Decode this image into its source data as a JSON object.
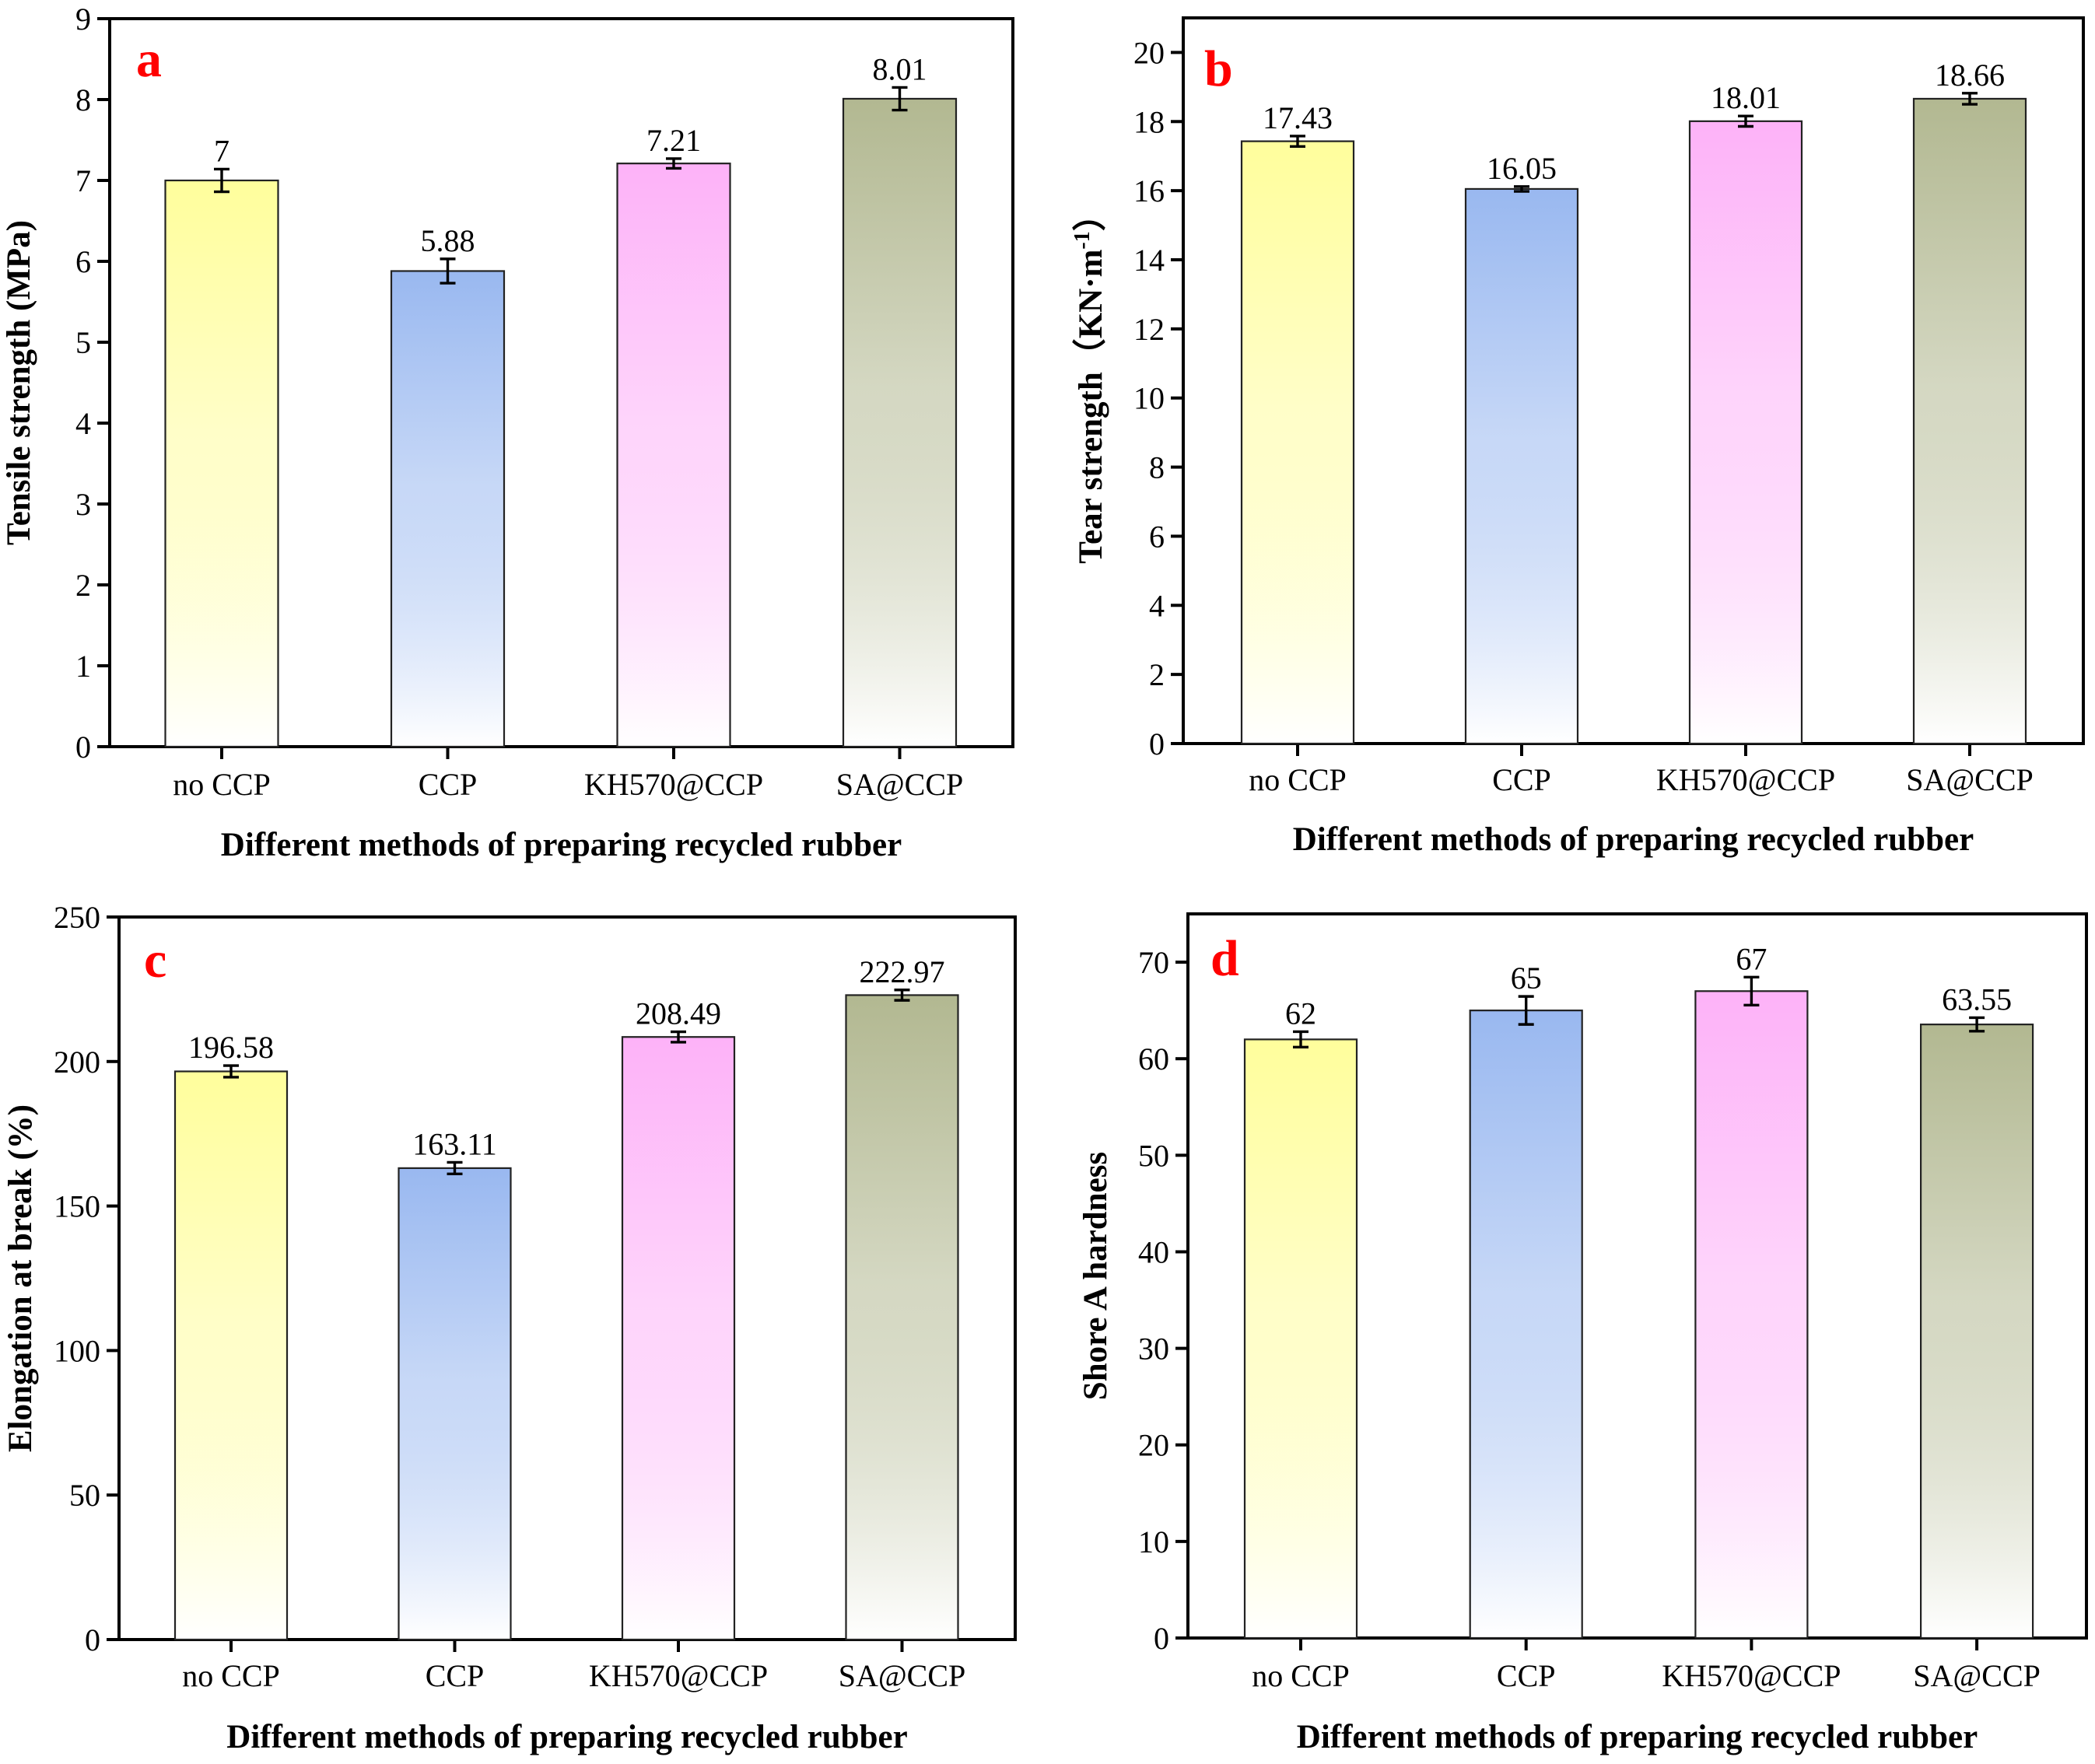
{
  "colors": {
    "no CCP": "#fffe9c",
    "CCP": "#99b8f0",
    "KH570@CCP": "#fdb2f8",
    "SA@CCP": "#b2b891",
    "panel_letter": "#ff0000"
  },
  "chart_data": [
    {
      "type": "bar",
      "panel": "a",
      "title": "",
      "categories": [
        "no CCP",
        "CCP",
        "KH570@CCP",
        "SA@CCP"
      ],
      "values": [
        7,
        5.88,
        7.21,
        8.01
      ],
      "value_labels": [
        "7",
        "5.88",
        "7.21",
        "8.01"
      ],
      "errors": [
        0.14,
        0.15,
        0.06,
        0.14
      ],
      "xlabel": "Different methods of preparing recycled rubber",
      "ylabel": "Tensile strength (MPa)",
      "ylim": [
        0,
        9
      ],
      "yticks": [
        0,
        1,
        2,
        3,
        4,
        5,
        6,
        7,
        8,
        9
      ],
      "grid": false,
      "legend": "none"
    },
    {
      "type": "bar",
      "panel": "b",
      "title": "",
      "categories": [
        "no CCP",
        "CCP",
        "KH570@CCP",
        "SA@CCP"
      ],
      "values": [
        17.43,
        16.05,
        18.01,
        18.66
      ],
      "value_labels": [
        "17.43",
        "16.05",
        "18.01",
        "18.66"
      ],
      "errors": [
        0.15,
        0.07,
        0.15,
        0.16
      ],
      "xlabel": "Different methods of preparing recycled rubber",
      "ylabel": "Tear strength（KN·m⁻¹）",
      "ylabel_main": "Tear strength（KN·m",
      "ylabel_sup": "-1",
      "ylabel_end": "）",
      "ylim": [
        0,
        21
      ],
      "yticks": [
        0,
        2,
        4,
        6,
        8,
        10,
        12,
        14,
        16,
        18,
        20
      ],
      "grid": false,
      "legend": "none"
    },
    {
      "type": "bar",
      "panel": "c",
      "title": "",
      "categories": [
        "no CCP",
        "CCP",
        "KH570@CCP",
        "SA@CCP"
      ],
      "values": [
        196.58,
        163.11,
        208.49,
        222.97
      ],
      "value_labels": [
        "196.58",
        "163.11",
        "208.49",
        "222.97"
      ],
      "errors": [
        2.0,
        2.0,
        1.8,
        1.8
      ],
      "xlabel": "Different methods of preparing recycled rubber",
      "ylabel": "Elongation at break (%)",
      "ylim": [
        0,
        250
      ],
      "yticks": [
        0,
        50,
        100,
        150,
        200,
        250
      ],
      "grid": false,
      "legend": "none"
    },
    {
      "type": "bar",
      "panel": "d",
      "title": "",
      "categories": [
        "no CCP",
        "CCP",
        "KH570@CCP",
        "SA@CCP"
      ],
      "values": [
        62,
        65,
        67,
        63.55
      ],
      "value_labels": [
        "62",
        "65",
        "67",
        "63.55"
      ],
      "errors": [
        0.8,
        1.45,
        1.45,
        0.7
      ],
      "xlabel": "Different methods of preparing recycled rubber",
      "ylabel": "Shore A hardness",
      "ylim": [
        0,
        75
      ],
      "yticks": [
        0,
        10,
        20,
        30,
        40,
        50,
        60,
        70
      ],
      "grid": false,
      "legend": "none"
    }
  ]
}
